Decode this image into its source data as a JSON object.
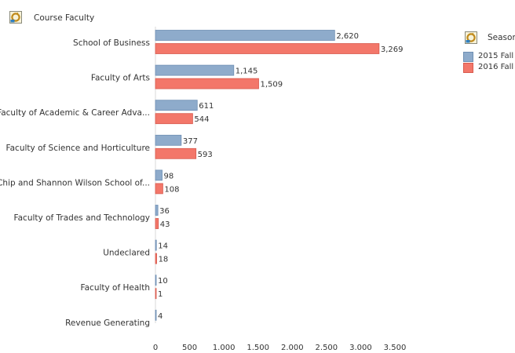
{
  "header": {
    "field_title": "Course Faculty",
    "legend_title": "Season"
  },
  "icons": {
    "field": "field-selector-icon",
    "legend": "field-selector-icon"
  },
  "colors": {
    "s2015": "#8eabcb",
    "s2015_border": "#6f8fb3",
    "s2016": "#f3776a",
    "s2016_border": "#d85a4e"
  },
  "chart_data": {
    "type": "bar",
    "orientation": "horizontal",
    "categories": [
      "School of Business",
      "Faculty of Arts",
      "Faculty of Academic & Career Adva...",
      "Faculty of Science and Horticulture",
      "Chip and Shannon Wilson School of...",
      "Faculty of Trades and Technology",
      "Undeclared",
      "Faculty of Health",
      "Revenue Generating"
    ],
    "series": [
      {
        "name": "2015 Fall",
        "values": [
          2620,
          1145,
          611,
          377,
          98,
          36,
          14,
          10,
          4
        ],
        "labels": [
          "2,620",
          "1,145",
          "611",
          "377",
          "98",
          "36",
          "14",
          "10",
          "4"
        ]
      },
      {
        "name": "2016 Fall",
        "values": [
          3269,
          1509,
          544,
          593,
          108,
          43,
          18,
          1,
          null
        ],
        "labels": [
          "3,269",
          "1,509",
          "544",
          "593",
          "108",
          "43",
          "18",
          "1",
          ""
        ]
      }
    ],
    "x_ticks": [
      0,
      500,
      1000,
      1500,
      2000,
      2500,
      3000,
      3500
    ],
    "x_tick_labels": [
      "0",
      "500",
      "1.000",
      "1.500",
      "2.000",
      "2.500",
      "3.000",
      "3.500"
    ],
    "xlim": [
      0,
      3500
    ],
    "grid": false,
    "legend_position": "top-right"
  }
}
